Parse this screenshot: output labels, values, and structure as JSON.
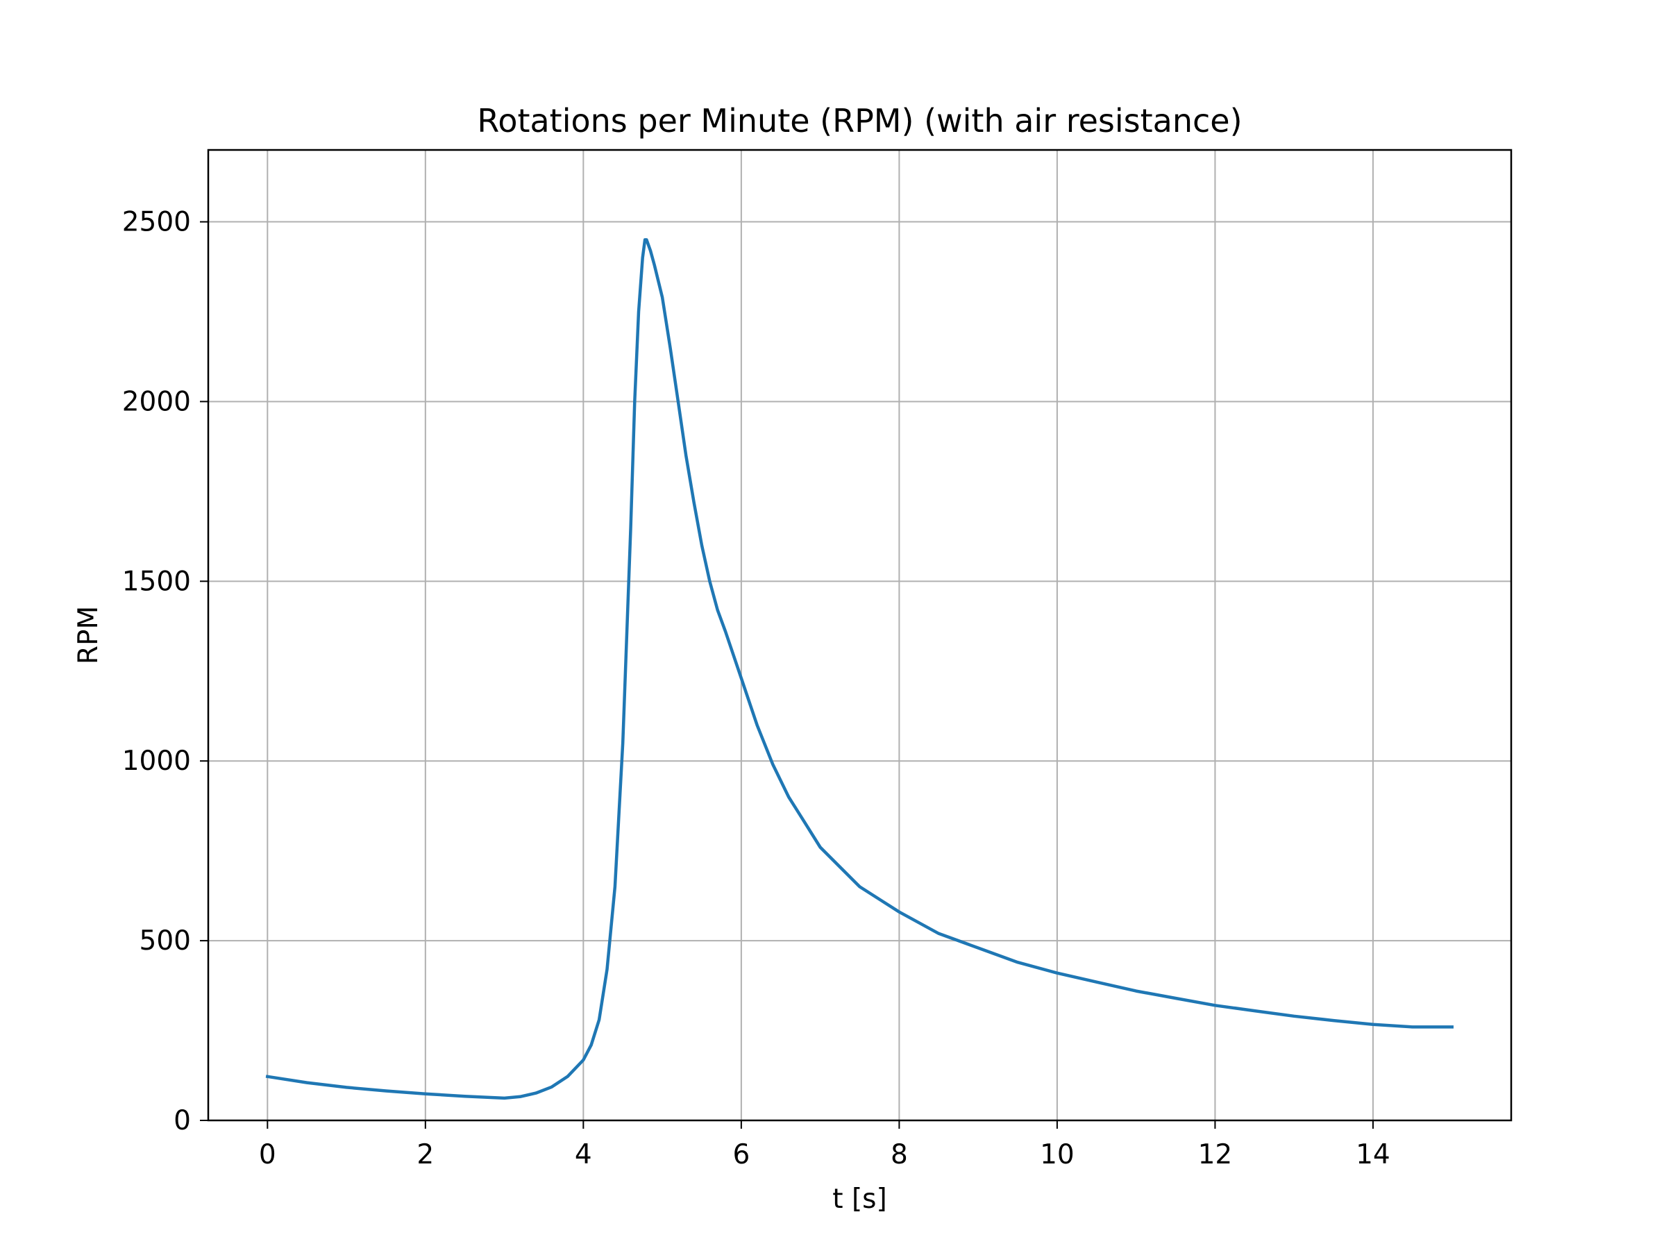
{
  "chart_data": {
    "type": "line",
    "title": "Rotations per Minute (RPM) (with air resistance)",
    "xlabel": "t [s]",
    "ylabel": "RPM",
    "xlim": [
      -0.75,
      15.75
    ],
    "ylim": [
      0,
      2700
    ],
    "xticks": [
      0,
      2,
      4,
      6,
      8,
      10,
      12,
      14
    ],
    "yticks": [
      0,
      500,
      1000,
      1500,
      2000,
      2500
    ],
    "grid": true,
    "colors": {
      "line": "#1f77b4",
      "grid": "#b0b0b0",
      "axes": "#000000"
    },
    "series": [
      {
        "x": [
          0,
          0.5,
          1.0,
          1.5,
          2.0,
          2.5,
          3.0,
          3.2,
          3.4,
          3.6,
          3.8,
          4.0,
          4.1,
          4.2,
          4.3,
          4.4,
          4.5,
          4.6,
          4.65,
          4.7,
          4.75,
          4.78,
          4.8,
          4.85,
          4.9,
          5.0,
          5.1,
          5.2,
          5.3,
          5.4,
          5.5,
          5.6,
          5.7,
          5.8,
          6.0,
          6.2,
          6.4,
          6.6,
          6.8,
          7.0,
          7.5,
          8.0,
          8.5,
          9.0,
          9.5,
          10.0,
          10.5,
          11.0,
          11.5,
          12.0,
          12.5,
          13.0,
          13.5,
          14.0,
          14.5,
          15.0
        ],
        "y": [
          122,
          105,
          92,
          82,
          74,
          67,
          62,
          66,
          76,
          93,
          122,
          168,
          210,
          280,
          420,
          650,
          1050,
          1650,
          2000,
          2250,
          2400,
          2450,
          2450,
          2420,
          2380,
          2290,
          2150,
          2000,
          1850,
          1720,
          1600,
          1500,
          1420,
          1360,
          1230,
          1100,
          990,
          900,
          830,
          760,
          650,
          580,
          520,
          480,
          440,
          410,
          385,
          360,
          340,
          320,
          305,
          290,
          278,
          267,
          260,
          260
        ]
      }
    ]
  }
}
